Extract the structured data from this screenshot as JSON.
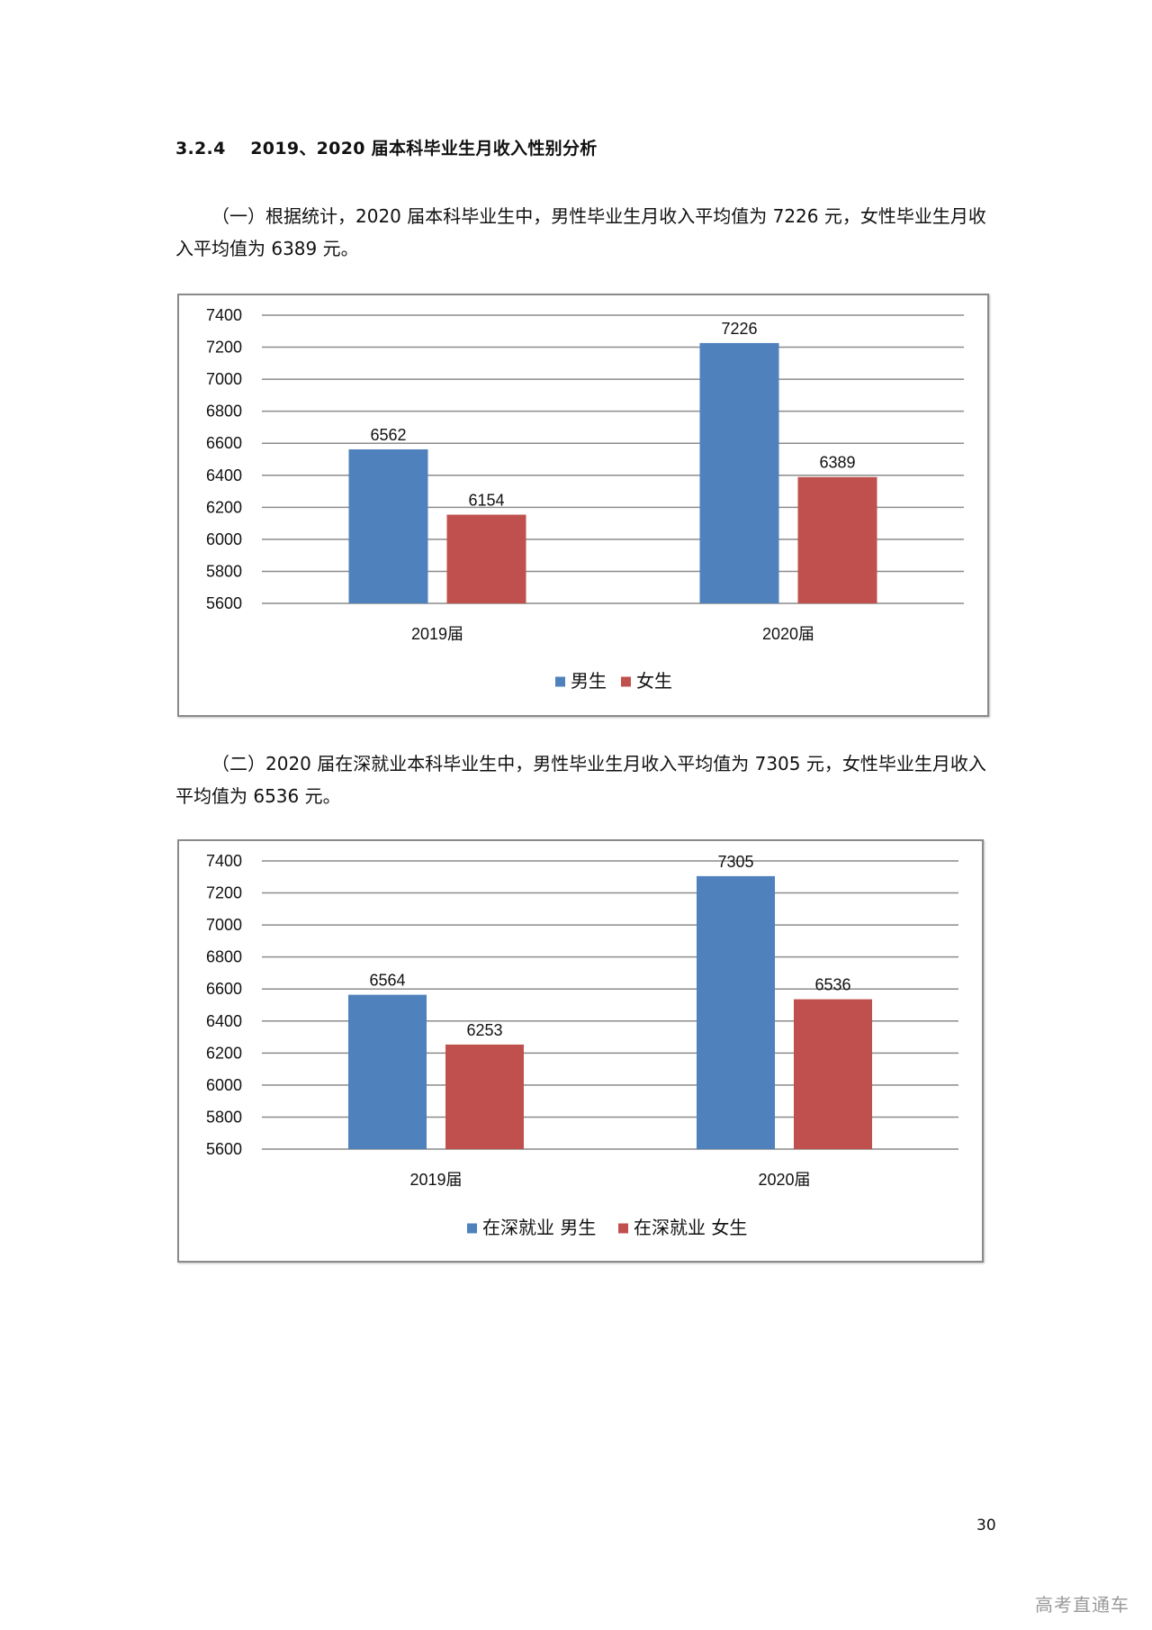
{
  "section": {
    "number": "3.2.4",
    "title": "2019、2020 届本科毕业生月收入性别分析"
  },
  "paragraph1": "（一）根据统计，2020 届本科毕业生中，男性毕业生月收入平均值为 7226 元，女性毕业生月收入平均值为 6389 元。",
  "paragraph2": "（二）2020 届在深就业本科毕业生中，男性毕业生月收入平均值为 7305 元，女性毕业生月收入平均值为 6536 元。",
  "colors": {
    "male": "#4F81BD",
    "female": "#C0504D",
    "grid": "#8c8c8c"
  },
  "chart_data": [
    {
      "type": "bar",
      "title": "",
      "categories": [
        "2019届",
        "2020届"
      ],
      "series": [
        {
          "name": "男生",
          "values": [
            6562,
            7226
          ]
        },
        {
          "name": "女生",
          "values": [
            6154,
            6389
          ]
        }
      ],
      "ylim": [
        5600,
        7400
      ],
      "yticks": [
        5600,
        5800,
        6000,
        6200,
        6400,
        6600,
        6800,
        7000,
        7200,
        7400
      ],
      "grid": true,
      "legend": "bottom",
      "data_labels": true
    },
    {
      "type": "bar",
      "title": "",
      "categories": [
        "2019届",
        "2020届"
      ],
      "series": [
        {
          "name": "在深就业 男生",
          "values": [
            6564,
            7305
          ]
        },
        {
          "name": "在深就业 女生",
          "values": [
            6253,
            6536
          ]
        }
      ],
      "ylim": [
        5600,
        7400
      ],
      "yticks": [
        5600,
        5800,
        6000,
        6200,
        6400,
        6600,
        6800,
        7000,
        7200,
        7400
      ],
      "grid": true,
      "legend": "bottom",
      "data_labels": true
    }
  ],
  "page_number": "30",
  "watermark": "高考直通车"
}
